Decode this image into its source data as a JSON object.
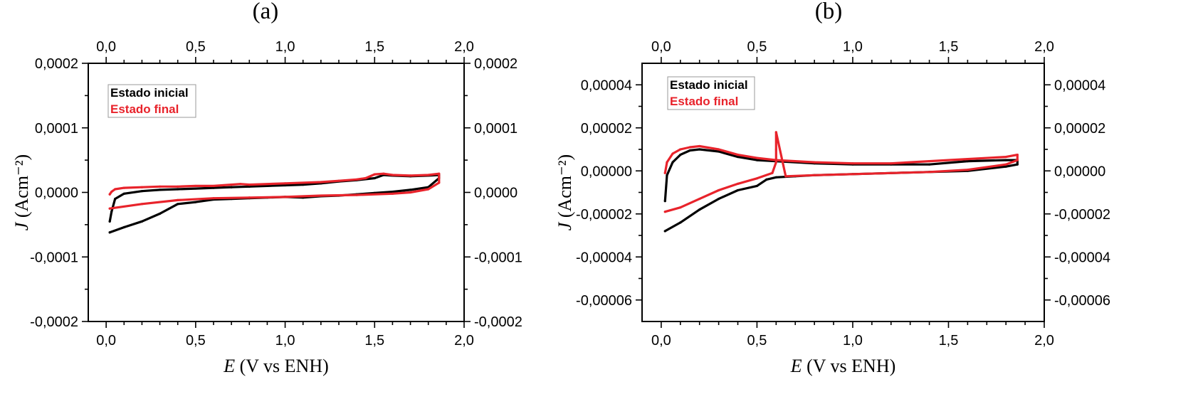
{
  "chart_data": [
    {
      "type": "line",
      "panel_label": "(a)",
      "xlabel": "E (V vs ENH)",
      "xlabel_italic": "E",
      "xlabel_rest": " (V vs ENH)",
      "ylabel": "J (Acm⁻²)",
      "ylabel_italic": "J",
      "ylabel_rest": " (Acm⁻²)",
      "xlim": [
        -0.1,
        2.0
      ],
      "ylim": [
        -0.0002,
        0.0002
      ],
      "x_ticks": [
        0.0,
        0.5,
        1.0,
        1.5,
        2.0
      ],
      "x_tick_labels": [
        "0,0",
        "0,5",
        "1,0",
        "1,5",
        "2,0"
      ],
      "y_ticks": [
        -0.0002,
        -0.0001,
        0.0,
        0.0001,
        0.0002
      ],
      "y_tick_labels": [
        "-0,0002",
        "-0,0001",
        "0,0000",
        "0,0001",
        "0,0002"
      ],
      "grid": false,
      "legend_position": "top-left",
      "series": [
        {
          "name": "Estado inicial",
          "color": "#000000",
          "x": [
            0.02,
            0.1,
            0.2,
            0.3,
            0.4,
            0.5,
            0.6,
            0.7,
            0.8,
            0.9,
            1.0,
            1.1,
            1.2,
            1.3,
            1.4,
            1.5,
            1.6,
            1.7,
            1.8,
            1.86,
            1.86,
            1.8,
            1.7,
            1.6,
            1.55,
            1.5,
            1.4,
            1.3,
            1.2,
            1.1,
            1.0,
            0.9,
            0.8,
            0.7,
            0.6,
            0.5,
            0.4,
            0.3,
            0.2,
            0.1,
            0.05,
            0.03,
            0.02
          ],
          "y": [
            -6.2e-05,
            -5.4e-05,
            -4.5e-05,
            -3.3e-05,
            -1.8e-05,
            -1.5e-05,
            -1.1e-05,
            -1e-05,
            -9e-06,
            -8e-06,
            -7e-06,
            -8e-06,
            -6e-06,
            -5e-06,
            -3e-06,
            -1e-06,
            1e-06,
            4e-06,
            8e-06,
            2.2e-05,
            2.7e-05,
            2.6e-05,
            2.5e-05,
            2.6e-05,
            2.7e-05,
            2.2e-05,
            1.9e-05,
            1.7e-05,
            1.4e-05,
            1.2e-05,
            1.1e-05,
            1e-05,
            9e-06,
            8e-06,
            7e-06,
            6e-06,
            5e-06,
            4e-06,
            2e-06,
            -2e-06,
            -1e-05,
            -3e-05,
            -4.5e-05
          ]
        },
        {
          "name": "Estado final",
          "color": "#e8232b",
          "x": [
            0.02,
            0.2,
            0.4,
            0.6,
            0.8,
            1.0,
            1.2,
            1.4,
            1.6,
            1.7,
            1.8,
            1.86,
            1.86,
            1.8,
            1.7,
            1.6,
            1.55,
            1.5,
            1.45,
            1.4,
            1.3,
            1.2,
            1.0,
            0.8,
            0.75,
            0.7,
            0.6,
            0.5,
            0.4,
            0.3,
            0.2,
            0.1,
            0.05,
            0.03,
            0.02
          ],
          "y": [
            -2.5e-05,
            -1.8e-05,
            -1.2e-05,
            -9e-06,
            -8e-06,
            -7e-06,
            -5e-06,
            -4e-06,
            -2e-06,
            0.0,
            5e-06,
            1.5e-05,
            2.9e-05,
            2.7e-05,
            2.6e-05,
            2.7e-05,
            2.9e-05,
            2.8e-05,
            2.2e-05,
            2e-05,
            1.8e-05,
            1.6e-05,
            1.4e-05,
            1.2e-05,
            1.3e-05,
            1.2e-05,
            1e-05,
            1e-05,
            9e-06,
            9e-06,
            8e-06,
            7e-06,
            5e-06,
            1e-06,
            -3e-06
          ]
        }
      ]
    },
    {
      "type": "line",
      "panel_label": "(b)",
      "xlabel": "E (V vs ENH)",
      "xlabel_italic": "E",
      "xlabel_rest": " (V vs ENH)",
      "ylabel": "J (Acm⁻²)",
      "ylabel_italic": "J",
      "ylabel_rest": " (Acm⁻²)",
      "xlim": [
        -0.1,
        2.0
      ],
      "ylim": [
        -7e-05,
        5e-05
      ],
      "x_ticks": [
        0.0,
        0.5,
        1.0,
        1.5,
        2.0
      ],
      "x_tick_labels": [
        "0,0",
        "0,5",
        "1,0",
        "1,5",
        "2,0"
      ],
      "y_ticks": [
        -6e-05,
        -4e-05,
        -2e-05,
        0.0,
        2e-05,
        4e-05
      ],
      "y_tick_labels": [
        "-0,00006",
        "-0,00004",
        "-0,00002",
        "0,00000",
        "0,00002",
        "0,00004"
      ],
      "grid": false,
      "legend_position": "top-left",
      "series": [
        {
          "name": "Estado inicial",
          "color": "#000000",
          "x": [
            0.02,
            0.1,
            0.2,
            0.3,
            0.4,
            0.5,
            0.55,
            0.6,
            0.7,
            0.8,
            1.0,
            1.2,
            1.4,
            1.6,
            1.8,
            1.86,
            1.86,
            1.8,
            1.6,
            1.4,
            1.2,
            1.0,
            0.8,
            0.6,
            0.5,
            0.4,
            0.3,
            0.2,
            0.15,
            0.1,
            0.06,
            0.03,
            0.02
          ],
          "y": [
            -2.8e-05,
            -2.4e-05,
            -1.8e-05,
            -1.3e-05,
            -9e-06,
            -7e-06,
            -4e-06,
            -3e-06,
            -2.5e-06,
            -2e-06,
            -1.5e-06,
            -1e-06,
            -5e-07,
            0.0,
            2e-06,
            3e-06,
            5e-06,
            5e-06,
            4.5e-06,
            3e-06,
            3e-06,
            3e-06,
            3.5e-06,
            4.5e-06,
            5e-06,
            6.5e-06,
            9e-06,
            1e-05,
            9.5e-06,
            7.5e-06,
            4e-06,
            -2e-06,
            -1.4e-05
          ]
        },
        {
          "name": "Estado final",
          "color": "#e8232b",
          "x": [
            0.02,
            0.1,
            0.2,
            0.3,
            0.4,
            0.5,
            0.58,
            0.6,
            0.6,
            0.6,
            0.65,
            0.8,
            1.0,
            1.2,
            1.4,
            1.6,
            1.8,
            1.86,
            1.86,
            1.8,
            1.6,
            1.4,
            1.2,
            1.0,
            0.8,
            0.6,
            0.5,
            0.4,
            0.3,
            0.2,
            0.15,
            0.1,
            0.06,
            0.03,
            0.02
          ],
          "y": [
            -1.9e-05,
            -1.7e-05,
            -1.3e-05,
            -9e-06,
            -6e-06,
            -3.5e-06,
            -1e-06,
            4e-06,
            1e-05,
            1.8e-05,
            -2.5e-06,
            -2e-06,
            -1.5e-06,
            -1e-06,
            -5e-07,
            5e-07,
            3e-06,
            5e-06,
            7.5e-06,
            6.5e-06,
            5.5e-06,
            4.5e-06,
            3.5e-06,
            3.5e-06,
            4e-06,
            5e-06,
            6e-06,
            7.5e-06,
            1e-05,
            1.15e-05,
            1.1e-05,
            1e-05,
            8e-06,
            4e-06,
            -1e-06
          ]
        }
      ]
    }
  ]
}
